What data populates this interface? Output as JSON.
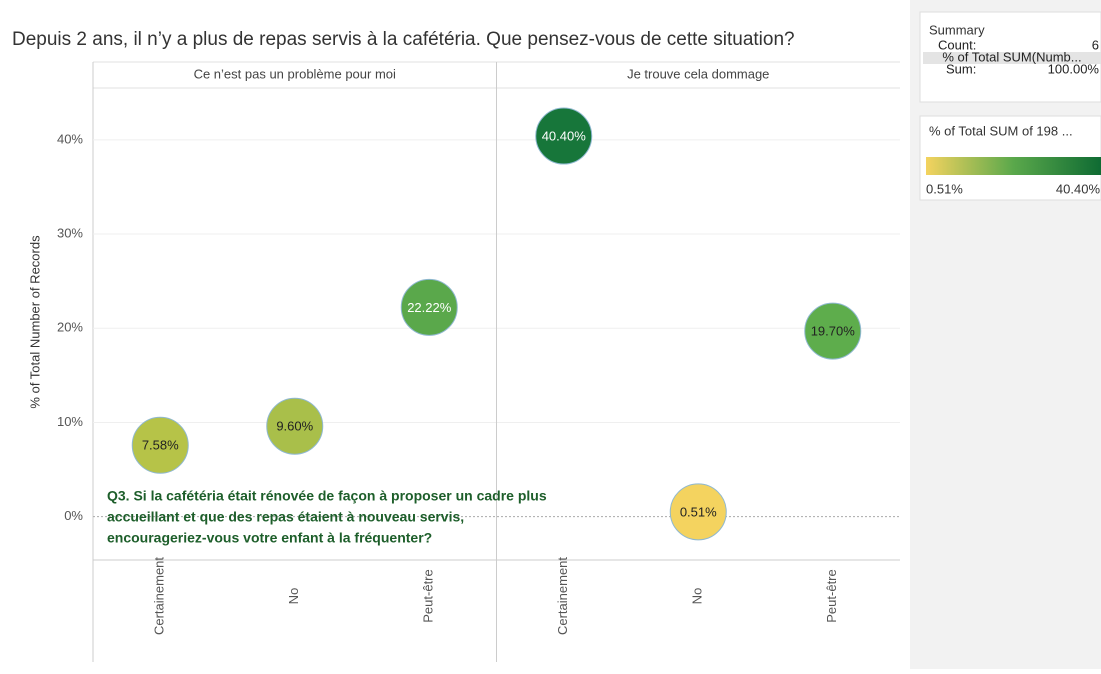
{
  "chart_data": {
    "type": "bubble",
    "title": "Depuis 2 ans, il n’y a plus de repas servis à la cafétéria. Que pensez-vous de cette situation?",
    "y_label": "% of Total Number of Records",
    "categories": [
      "Certainement",
      "No",
      "Peut-être"
    ],
    "series": [
      {
        "name": "Ce n’est pas un problème pour moi",
        "values": [
          7.58,
          9.6,
          22.22
        ],
        "value_labels": [
          "7.58%",
          "9.60%",
          "22.22%"
        ],
        "colors": [
          "#b6c348",
          "#a9bf4a",
          "#5aa84b"
        ],
        "label_colors": [
          "#222",
          "#222",
          "#fff"
        ]
      },
      {
        "name": "Je trouve cela dommage",
        "values": [
          40.4,
          0.51,
          19.7
        ],
        "value_labels": [
          "40.40%",
          "0.51%",
          "19.70%"
        ],
        "colors": [
          "#17763a",
          "#f4d35f",
          "#5ead4c"
        ],
        "label_colors": [
          "#fff",
          "#222",
          "#222"
        ]
      }
    ],
    "ylim": [
      -4.6,
      45.5
    ],
    "yticks": [
      {
        "value": 0,
        "label": "0%"
      },
      {
        "value": 10,
        "label": "10%"
      },
      {
        "value": 20,
        "label": "20%"
      },
      {
        "value": 30,
        "label": "30%"
      },
      {
        "value": 40,
        "label": "40%"
      }
    ],
    "grid": true,
    "annotation": [
      "Q3. Si la cafétéria était rénovée de façon à proposer un cadre plus",
      "accueillant et que des repas étaient à nouveau servis,",
      "encourageriez-vous votre enfant à la fréquenter?"
    ]
  },
  "summary": {
    "title": "Summary",
    "rows": [
      [
        "Count:",
        "6"
      ],
      [
        "% of Total SUM(Numb..."
      ],
      [
        "Sum:",
        "100.00%"
      ]
    ]
  },
  "color_legend": {
    "title": "% of Total SUM of 198 ...",
    "min_label": "0.51%",
    "max_label": "40.40%",
    "colors": [
      "#f4d35f",
      "#5aa84b",
      "#0f6b33"
    ]
  }
}
